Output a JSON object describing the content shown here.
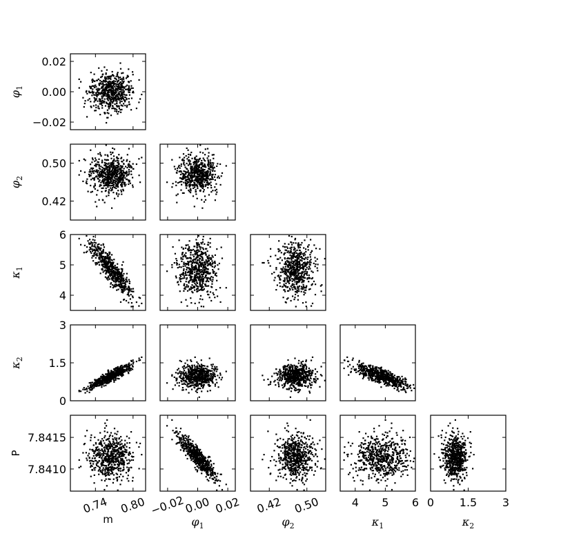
{
  "chart_data": {
    "type": "scatter",
    "layout": "corner-plot",
    "parameters": [
      {
        "key": "m",
        "symbol": "m",
        "sub": "",
        "style": "plain",
        "range": [
          0.7,
          0.82
        ],
        "ticks": [
          0.74,
          0.8
        ],
        "tick_labels": [
          "0.74",
          "0.80"
        ],
        "rotate_ticks": true
      },
      {
        "key": "phi1",
        "symbol": "φ",
        "sub": "1",
        "style": "greek",
        "range": [
          -0.025,
          0.025
        ],
        "ticks": [
          -0.02,
          0.0,
          0.02
        ],
        "tick_labels": [
          "−0.02",
          "0.00",
          "0.02"
        ],
        "rotate_ticks": true
      },
      {
        "key": "phi2",
        "symbol": "φ",
        "sub": "2",
        "style": "greek",
        "range": [
          0.38,
          0.54
        ],
        "ticks": [
          0.42,
          0.5
        ],
        "tick_labels": [
          "0.42",
          "0.50"
        ],
        "rotate_ticks": true
      },
      {
        "key": "kappa1",
        "symbol": "κ",
        "sub": "1",
        "style": "greek",
        "range": [
          3.5,
          6.0
        ],
        "ticks": [
          4,
          5,
          6
        ],
        "tick_labels": [
          "4",
          "5",
          "6"
        ],
        "rotate_ticks": false
      },
      {
        "key": "kappa2",
        "symbol": "κ",
        "sub": "2",
        "style": "greek",
        "range": [
          0.0,
          3.0
        ],
        "ticks": [
          0,
          1.5,
          3
        ],
        "tick_labels": [
          "0",
          "1.5",
          "3"
        ],
        "rotate_ticks": false
      },
      {
        "key": "P",
        "symbol": "P",
        "sub": "",
        "style": "plain",
        "range": [
          7.84065,
          7.84185
        ],
        "ticks": [
          7.841,
          7.8415
        ],
        "tick_labels": [
          "7.8410",
          "7.8415"
        ],
        "rotate_ticks": false
      }
    ],
    "rows": [
      "phi1",
      "phi2",
      "kappa1",
      "kappa2",
      "P"
    ],
    "cols": [
      "m",
      "phi1",
      "phi2",
      "kappa1",
      "kappa2"
    ],
    "n_samples": 600,
    "distribution": {
      "m": {
        "mean": 0.765,
        "sd": 0.017
      },
      "phi1": {
        "mean": 0.0,
        "sd": 0.0065
      },
      "phi2": {
        "mean": 0.475,
        "sd": 0.02
      },
      "kappa1": {
        "mean": 4.85,
        "sd": 0.45
      },
      "kappa2": {
        "mean": 1.2,
        "sd": 0.4
      },
      "P": {
        "mean": 7.84118,
        "sd": 0.00018
      },
      "relations": [
        {
          "x": "m",
          "y": "kappa1",
          "correlation": -0.88
        },
        {
          "x": "m",
          "y": "kappa2",
          "correlation": 0.93
        },
        {
          "x": "kappa1",
          "y": "kappa2",
          "correlation": -0.8
        },
        {
          "x": "phi1",
          "y": "P",
          "correlation": -0.9
        }
      ]
    },
    "grid": false,
    "legend": "none",
    "marker_color": "#000000"
  }
}
